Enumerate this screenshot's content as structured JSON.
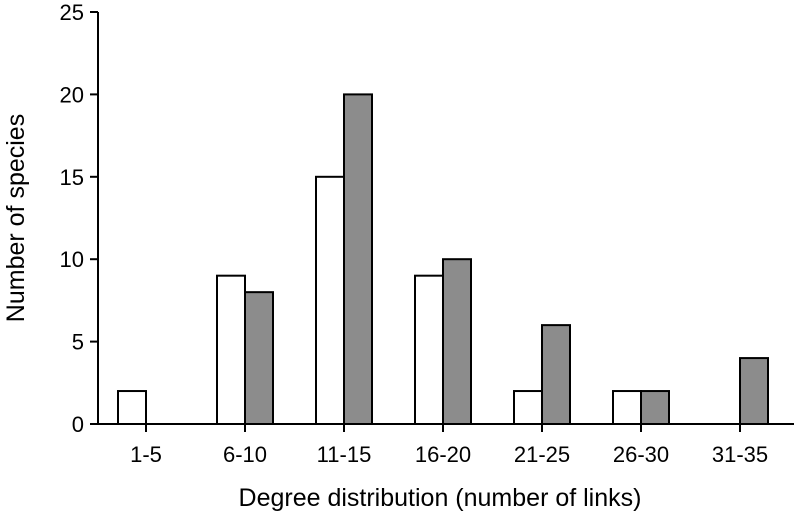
{
  "chart_data": {
    "type": "bar",
    "title": "",
    "xlabel": "Degree distribution (number of links)",
    "ylabel": "Number of species",
    "categories": [
      "1-5",
      "6-10",
      "11-15",
      "16-20",
      "21-25",
      "26-30",
      "31-35"
    ],
    "series": [
      {
        "values": [
          2,
          9,
          15,
          9,
          2,
          2,
          0
        ],
        "color": "#ffffff"
      },
      {
        "values": [
          0,
          8,
          20,
          10,
          6,
          2,
          4
        ],
        "color": "#8c8c8c"
      }
    ],
    "ylim": [
      0,
      25
    ],
    "yticks": [
      0,
      5,
      10,
      15,
      20,
      25
    ],
    "grid": false,
    "legend": "none"
  }
}
